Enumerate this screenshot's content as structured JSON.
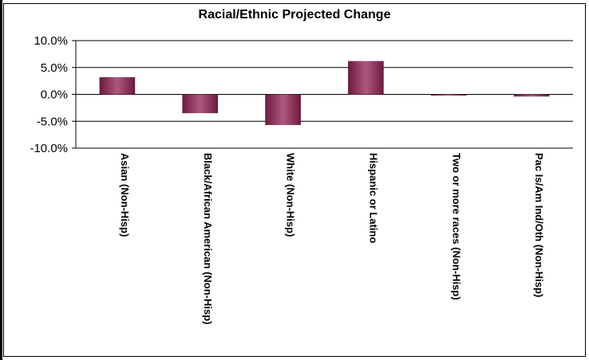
{
  "chart_data": {
    "type": "bar",
    "title": "Racial/Ethnic Projected Change",
    "categories": [
      "Asian (Non-Hisp)",
      "Black/African American (Non-Hisp)",
      "White (Non-Hisp)",
      "Hispanic or Latino",
      "Two or more races (Non-Hisp)",
      "Pac Is/Am Ind/Oth (Non-Hisp)"
    ],
    "series": [
      {
        "values": [
          3.2,
          -3.5,
          -5.7,
          6.2,
          -0.1,
          -0.4
        ]
      }
    ],
    "ylim": [
      -10,
      10
    ],
    "yticks": [
      10,
      5,
      0,
      -5,
      -10
    ],
    "ytick_labels": [
      "10.0%",
      "5.0%",
      "0.0%",
      "-5.0%",
      "-10.0%"
    ],
    "grid": true,
    "legend": "none",
    "bar_color": "#6b1a3f",
    "bar_highlight": "#b0577d"
  }
}
